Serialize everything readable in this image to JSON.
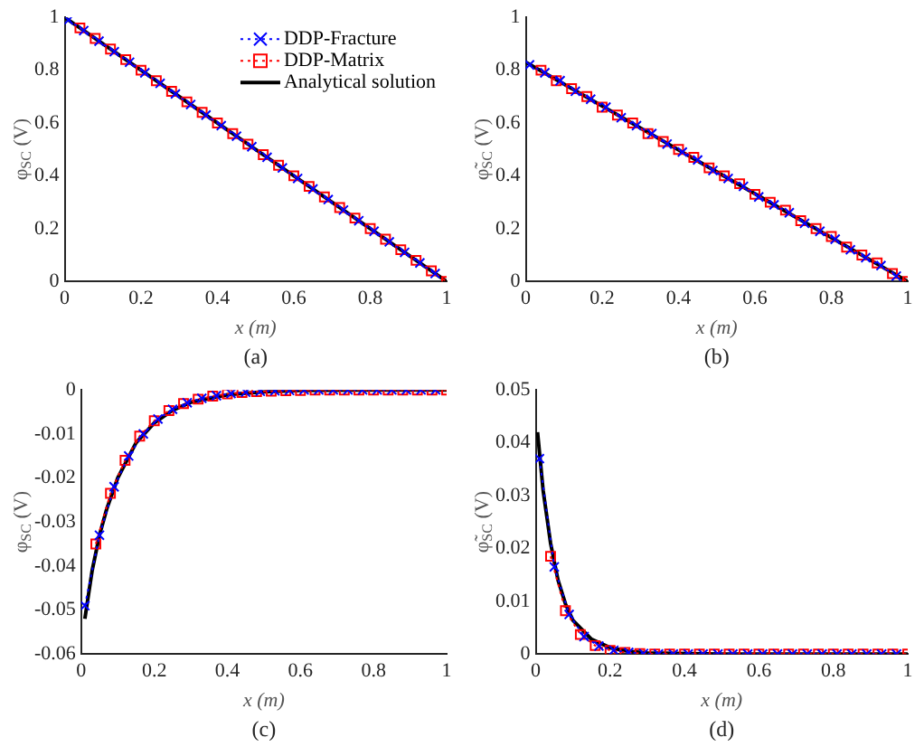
{
  "chart_data": [
    {
      "type": "line",
      "xlabel": "x (m)",
      "ylabel": "φ$_{SC}$ (V)",
      "annotations": [
        "(a)"
      ],
      "xlim": [
        0,
        1
      ],
      "xticks": [
        0,
        0.2,
        0.4,
        0.6,
        0.8,
        1
      ],
      "ylim": [
        0,
        1
      ],
      "yticks": [
        0,
        0.2,
        0.4,
        0.6,
        0.8,
        1
      ],
      "grid": false,
      "legend": "top right",
      "series": [
        {
          "name": "DDP-Fracture",
          "color": "#0000ff",
          "marker": "cross",
          "line_style": "dotted",
          "x": [
            0.01,
            0.05,
            0.09,
            0.13,
            0.17,
            0.21,
            0.25,
            0.29,
            0.33,
            0.37,
            0.41,
            0.45,
            0.49,
            0.53,
            0.57,
            0.61,
            0.65,
            0.69,
            0.73,
            0.77,
            0.81,
            0.85,
            0.89,
            0.93,
            0.97
          ],
          "values": [
            0.99,
            0.95,
            0.91,
            0.87,
            0.83,
            0.79,
            0.75,
            0.71,
            0.67,
            0.63,
            0.59,
            0.55,
            0.51,
            0.47,
            0.43,
            0.39,
            0.35,
            0.31,
            0.27,
            0.23,
            0.19,
            0.15,
            0.11,
            0.07,
            0.03
          ]
        },
        {
          "name": "DDP-Matrix",
          "color": "#ff0000",
          "marker": "square",
          "line_style": "dotted",
          "x": [
            0.04,
            0.08,
            0.12,
            0.16,
            0.2,
            0.24,
            0.28,
            0.32,
            0.36,
            0.4,
            0.44,
            0.48,
            0.52,
            0.56,
            0.6,
            0.64,
            0.68,
            0.72,
            0.76,
            0.8,
            0.84,
            0.88,
            0.92,
            0.96,
            1
          ],
          "values": [
            0.96,
            0.92,
            0.88,
            0.84,
            0.8,
            0.76,
            0.72,
            0.68,
            0.64,
            0.6,
            0.56,
            0.52,
            0.48,
            0.44,
            0.4,
            0.36,
            0.32,
            0.28,
            0.24,
            0.2,
            0.16,
            0.12,
            0.08,
            0.04,
            0
          ]
        },
        {
          "name": "Analytical solution",
          "color": "#000000",
          "marker": "none",
          "line_style": "solid",
          "x": [
            0,
            1
          ],
          "values": [
            1,
            0
          ]
        }
      ]
    },
    {
      "type": "line",
      "xlabel": "x (m)",
      "ylabel": "φ̃$_{SC}$ (V)",
      "annotations": [
        "(b)"
      ],
      "xlim": [
        0,
        1
      ],
      "xticks": [
        0,
        0.2,
        0.4,
        0.6,
        0.8,
        1
      ],
      "ylim": [
        0,
        1
      ],
      "yticks": [
        0,
        0.2,
        0.4,
        0.6,
        0.8,
        1
      ],
      "grid": false,
      "series": [
        {
          "color": "#0000ff",
          "marker": "cross",
          "line_style": "dotted",
          "x": [
            0.01,
            0.05,
            0.09,
            0.13,
            0.17,
            0.21,
            0.25,
            0.29,
            0.33,
            0.37,
            0.41,
            0.45,
            0.49,
            0.53,
            0.57,
            0.61,
            0.65,
            0.69,
            0.73,
            0.77,
            0.81,
            0.85,
            0.89,
            0.93,
            0.97
          ],
          "values": [
            0.82,
            0.79,
            0.76,
            0.72,
            0.69,
            0.66,
            0.62,
            0.59,
            0.56,
            0.52,
            0.49,
            0.46,
            0.42,
            0.39,
            0.36,
            0.32,
            0.29,
            0.26,
            0.22,
            0.19,
            0.16,
            0.12,
            0.09,
            0.06,
            0.02
          ]
        },
        {
          "color": "#ff0000",
          "marker": "square",
          "line_style": "dotted",
          "x": [
            0.04,
            0.08,
            0.12,
            0.16,
            0.2,
            0.24,
            0.28,
            0.32,
            0.36,
            0.4,
            0.44,
            0.48,
            0.52,
            0.56,
            0.6,
            0.64,
            0.68,
            0.72,
            0.76,
            0.8,
            0.84,
            0.88,
            0.92,
            0.96,
            1
          ],
          "values": [
            0.8,
            0.76,
            0.73,
            0.7,
            0.66,
            0.63,
            0.6,
            0.56,
            0.53,
            0.5,
            0.47,
            0.43,
            0.4,
            0.37,
            0.33,
            0.3,
            0.27,
            0.23,
            0.2,
            0.17,
            0.13,
            0.1,
            0.07,
            0.03,
            0
          ]
        },
        {
          "color": "#000000",
          "marker": "none",
          "line_style": "solid",
          "x": [
            0,
            1
          ],
          "values": [
            0.83,
            0
          ]
        }
      ]
    },
    {
      "type": "line",
      "xlabel": "x (m)",
      "ylabel": "φ$_{SC}$ (V)",
      "annotations": [
        "(c)"
      ],
      "xlim": [
        0,
        1
      ],
      "xticks": [
        0,
        0.2,
        0.4,
        0.6,
        0.8,
        1
      ],
      "ylim": [
        -0.06,
        0
      ],
      "yticks": [
        -0.06,
        -0.05,
        -0.04,
        -0.03,
        -0.02,
        -0.01,
        0
      ],
      "grid": false,
      "series": [
        {
          "color": "#0000ff",
          "marker": "cross",
          "line_style": "dotted",
          "x": [
            0.01,
            0.05,
            0.09,
            0.13,
            0.17,
            0.21,
            0.25,
            0.29,
            0.33,
            0.37,
            0.41,
            0.45,
            0.49,
            0.53,
            0.57,
            0.61,
            0.65,
            0.69,
            0.73,
            0.77,
            0.81,
            0.85,
            0.89,
            0.93,
            0.97
          ],
          "values": [
            -0.049,
            -0.033,
            -0.022,
            -0.015,
            -0.01,
            -0.0066,
            -0.0044,
            -0.0029,
            -0.0019,
            -0.0013,
            -0.0008,
            -0.0005,
            -0.0003,
            -0.0002,
            -0.0001,
            0,
            0,
            0,
            0,
            0,
            0,
            0,
            0,
            0,
            0
          ]
        },
        {
          "color": "#ff0000",
          "marker": "square",
          "line_style": "dotted",
          "x": [
            0.04,
            0.08,
            0.12,
            0.16,
            0.2,
            0.24,
            0.28,
            0.32,
            0.36,
            0.4,
            0.44,
            0.48,
            0.52,
            0.56,
            0.6,
            0.64,
            0.68,
            0.72,
            0.76,
            0.8,
            0.84,
            0.88,
            0.92,
            0.96,
            1
          ],
          "values": [
            -0.035,
            -0.0235,
            -0.016,
            -0.0105,
            -0.007,
            -0.0047,
            -0.0031,
            -0.0021,
            -0.0014,
            -0.0009,
            -0.0006,
            -0.0004,
            -0.0003,
            -0.0002,
            -0.0001,
            0,
            0,
            0,
            0,
            0,
            0,
            0,
            0,
            0,
            0
          ]
        },
        {
          "color": "#000000",
          "marker": "none",
          "line_style": "solid",
          "x": [
            0.01,
            0.03,
            0.05,
            0.07,
            0.1,
            0.15,
            0.2,
            0.25,
            0.3,
            0.4,
            0.5,
            0.6,
            0.8,
            1
          ],
          "values": [
            -0.052,
            -0.041,
            -0.033,
            -0.027,
            -0.02,
            -0.012,
            -0.0075,
            -0.0046,
            -0.0028,
            -0.0011,
            -0.0004,
            -0.0001,
            0,
            0
          ]
        }
      ]
    },
    {
      "type": "line",
      "xlabel": "x (m)",
      "ylabel": "φ̃$_{SC}$ (V)",
      "annotations": [
        "(d)"
      ],
      "xlim": [
        0,
        1
      ],
      "xticks": [
        0,
        0.2,
        0.4,
        0.6,
        0.8,
        1
      ],
      "ylim": [
        0,
        0.05
      ],
      "yticks": [
        0,
        0.01,
        0.02,
        0.03,
        0.04,
        0.05
      ],
      "grid": false,
      "series": [
        {
          "color": "#0000ff",
          "marker": "cross",
          "line_style": "dotted",
          "x": [
            0.01,
            0.05,
            0.09,
            0.13,
            0.17,
            0.21,
            0.25,
            0.29,
            0.33,
            0.37,
            0.41,
            0.45,
            0.49,
            0.53,
            0.57,
            0.61,
            0.65,
            0.69,
            0.73,
            0.77,
            0.81,
            0.85,
            0.89,
            0.93,
            0.97
          ],
          "values": [
            0.037,
            0.0165,
            0.0075,
            0.0033,
            0.0015,
            0.0007,
            0.0003,
            0.0001,
            0,
            0,
            0,
            0,
            0,
            0,
            0,
            0,
            0,
            0,
            0,
            0,
            0,
            0,
            0,
            0,
            0
          ]
        },
        {
          "color": "#ff0000",
          "marker": "square",
          "line_style": "dotted",
          "x": [
            0.04,
            0.08,
            0.12,
            0.16,
            0.2,
            0.24,
            0.28,
            0.32,
            0.36,
            0.4,
            0.44,
            0.48,
            0.52,
            0.56,
            0.6,
            0.64,
            0.68,
            0.72,
            0.76,
            0.8,
            0.84,
            0.88,
            0.92,
            0.96,
            1
          ],
          "values": [
            0.0185,
            0.0082,
            0.0037,
            0.0016,
            0.0007,
            0.0003,
            0.0001,
            0,
            0,
            0,
            0,
            0,
            0,
            0,
            0,
            0,
            0,
            0,
            0,
            0,
            0,
            0,
            0,
            0,
            0
          ]
        },
        {
          "color": "#000000",
          "marker": "none",
          "line_style": "solid",
          "x": [
            0.005,
            0.02,
            0.04,
            0.06,
            0.08,
            0.1,
            0.15,
            0.2,
            0.25,
            0.3,
            0.5,
            1
          ],
          "values": [
            0.042,
            0.031,
            0.021,
            0.014,
            0.0095,
            0.0064,
            0.0028,
            0.0012,
            0.0005,
            0.0002,
            0,
            0
          ]
        }
      ]
    }
  ]
}
